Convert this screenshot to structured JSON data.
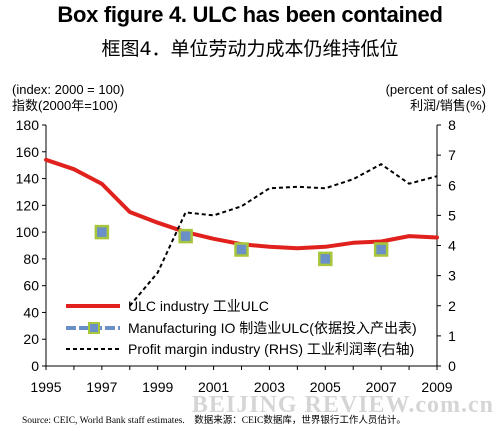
{
  "chart_data": {
    "type": "line",
    "title": "Box figure 4. ULC has been contained",
    "title_zh": "框图4．单位劳动力成本仍维持低位",
    "left_axis_label": "(index: 2000 = 100)",
    "left_axis_label_zh": "指数(2000年=100)",
    "right_axis_label": "(percent of sales)",
    "right_axis_label_zh": "利润/销售(%)",
    "xlim": [
      1995,
      2009
    ],
    "ylim_left": [
      0,
      180
    ],
    "ylim_right": [
      0,
      8
    ],
    "x_ticks": [
      "1995",
      "1997",
      "1999",
      "2001",
      "2003",
      "2005",
      "2007",
      "2009"
    ],
    "y_ticks_left": [
      "0",
      "20",
      "40",
      "60",
      "80",
      "100",
      "120",
      "140",
      "160",
      "180"
    ],
    "y_ticks_right": [
      "0",
      "1",
      "2",
      "3",
      "4",
      "5",
      "6",
      "7",
      "8"
    ],
    "grid": false,
    "legend_position": "bottom-left",
    "series": [
      {
        "name": "ULC industry 工业ULC",
        "axis": "left",
        "style": "solid",
        "color": "#e0211d",
        "x": [
          1995,
          1996,
          1997,
          1998,
          1999,
          2000,
          2001,
          2002,
          2003,
          2004,
          2005,
          2006,
          2007,
          2008,
          2009
        ],
        "values": [
          154,
          147,
          136,
          115,
          107,
          100,
          95,
          91,
          89,
          88,
          89,
          92,
          93,
          97,
          96
        ]
      },
      {
        "name": "Manufacturing IO 制造业ULC(依据投入产出表)",
        "axis": "left",
        "style": "marker",
        "color": "#6b8fc7",
        "marker_edge": "#a8c63b",
        "x": [
          1997,
          2000,
          2002,
          2005,
          2007
        ],
        "values": [
          100,
          97,
          87,
          80,
          87
        ]
      },
      {
        "name": "Profit margin industry (RHS) 工业利润率(右轴)",
        "axis": "right",
        "style": "dashed",
        "color": "#000000",
        "x": [
          1998,
          1999,
          2000,
          2001,
          2002,
          2003,
          2004,
          2005,
          2006,
          2007,
          2008,
          2009
        ],
        "values": [
          2.0,
          3.1,
          5.1,
          5.0,
          5.3,
          5.9,
          5.95,
          5.9,
          6.2,
          6.7,
          6.05,
          6.3
        ]
      }
    ]
  },
  "source": "Source: CEIC, World Bank staff estimates.　数据来源：CEIC数据库，世界银行工作人员估计。",
  "watermark": "BEIJING REVIEW.com.cn"
}
